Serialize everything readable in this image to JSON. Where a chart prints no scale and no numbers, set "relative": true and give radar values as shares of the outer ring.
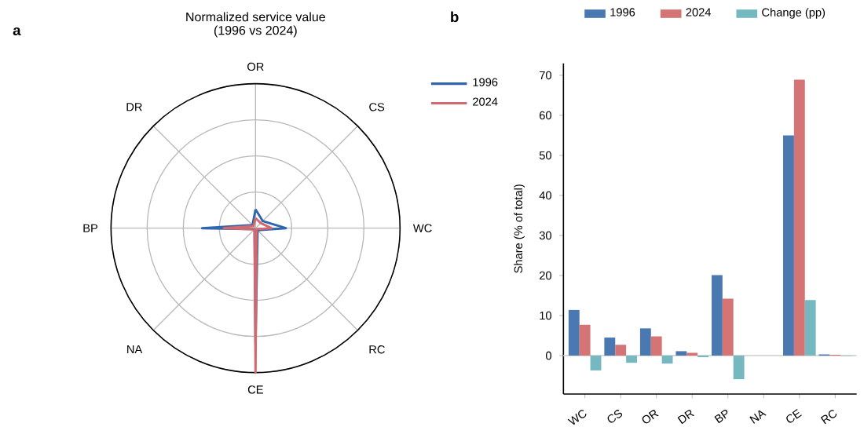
{
  "chart_data": [
    {
      "type": "radar",
      "title": "Normalized service value",
      "subtitle": "(1996 vs 2024)",
      "annotations": [
        "a"
      ],
      "categories": [
        "OR",
        "CS",
        "WC",
        "RC",
        "CE",
        "NA",
        "BP",
        "DR"
      ],
      "relative": true,
      "legend": "top right",
      "grid": true,
      "series": [
        {
          "name": "1996",
          "color": "#2f66ad",
          "values": [
            0.13,
            0.07,
            0.21,
            0.02,
            0.8,
            0.01,
            0.37,
            0.03
          ]
        },
        {
          "name": "2024",
          "color": "#d2696e",
          "values": [
            0.07,
            0.05,
            0.11,
            0.01,
            1,
            0.01,
            0.22,
            0.02
          ]
        }
      ]
    },
    {
      "type": "bar",
      "annotations": [
        "b"
      ],
      "ylabel": "Share (% of total)",
      "categories": [
        "WC",
        "CS",
        "OR",
        "DR",
        "BP",
        "NA",
        "CE",
        "RC"
      ],
      "ylim": [
        -9.6,
        73
      ],
      "yticks": [
        0,
        10,
        20,
        30,
        40,
        50,
        60,
        70
      ],
      "legend": "top",
      "ref_lines": [
        {
          "axis": "y",
          "value": 0,
          "color": "#d9d9d9"
        }
      ],
      "series": [
        {
          "name": "1996",
          "color": "#4a78b0",
          "values": [
            11.4,
            4.5,
            6.8,
            1.1,
            20.1,
            0,
            55,
            0.3
          ]
        },
        {
          "name": "2024",
          "color": "#d47474",
          "values": [
            7.7,
            2.7,
            4.8,
            0.7,
            14.2,
            0,
            68.9,
            0.2
          ]
        },
        {
          "name": "Change (pp)",
          "color": "#76b8bf",
          "values": [
            -3.7,
            -1.8,
            -2.0,
            -0.4,
            -5.9,
            0,
            13.9,
            -0.1
          ]
        }
      ]
    }
  ]
}
